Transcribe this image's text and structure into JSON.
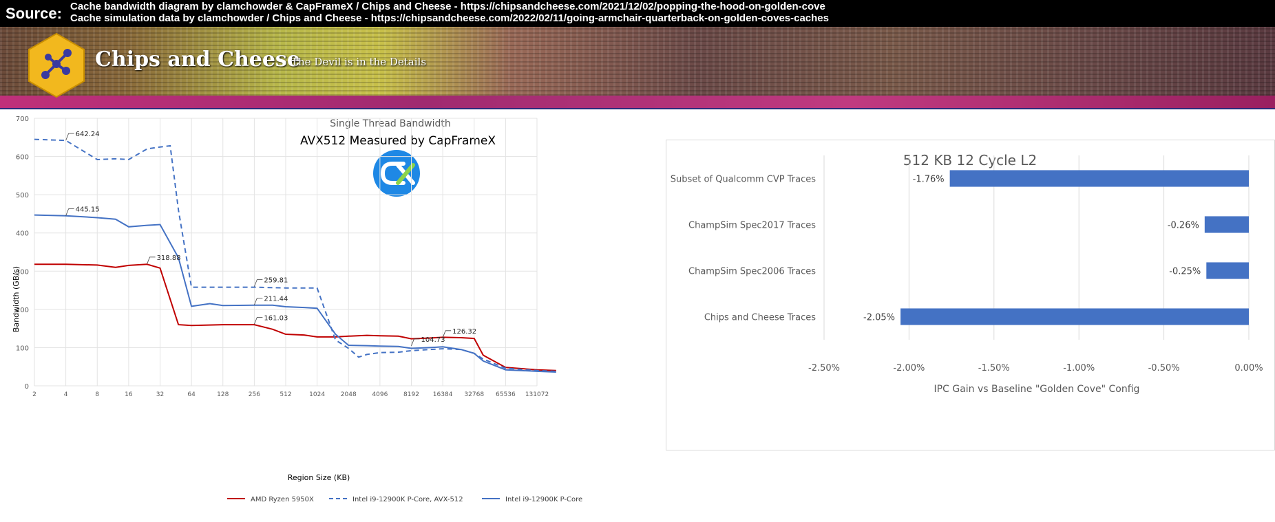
{
  "source": {
    "label": "Source:",
    "line1": "Cache bandwidth diagram by clamchowder & CapFrameX / Chips and Cheese - https://chipsandcheese.com/2021/12/02/popping-the-hood-on-golden-cove",
    "line2": "Cache simulation data by clamchowder / Chips and Cheese - https://chipsandcheese.com/2022/02/11/going-armchair-quarterback-on-golden-coves-caches"
  },
  "banner": {
    "title": "Chips and Cheese",
    "tagline": "The Devil is in the Details",
    "logo_icon": "hexagon-network-logo-icon"
  },
  "colors": {
    "amd": "#c00000",
    "intel_avx": "#4472c4",
    "intel": "#4472c4",
    "bar": "#4472c4",
    "grid": "#e3e3e3",
    "cx_logo": "#1e88e5"
  },
  "chart_data": [
    {
      "type": "line",
      "title": "Single Thread Bandwidth",
      "subtitle": "AVX512 Measured by CapFrameX",
      "xlabel": "Region Size (KB)",
      "ylabel": "Bandwidth (GB/s)",
      "ylim": [
        0,
        700
      ],
      "yticks": [
        "0",
        "100",
        "200",
        "300",
        "400",
        "500",
        "600",
        "700"
      ],
      "x_ticks": [
        "2",
        "4",
        "8",
        "16",
        "32",
        "64",
        "128",
        "256",
        "512",
        "1024",
        "2048",
        "4096",
        "8192",
        "16384",
        "32768",
        "65536",
        "131072"
      ],
      "log2_x": true,
      "grid": true,
      "legend_position": "bottom",
      "series": [
        {
          "name": "AMD Ryzen 5950X",
          "style": "solid",
          "points": [
            [
              2,
              318
            ],
            [
              4,
              318
            ],
            [
              8,
              316
            ],
            [
              12,
              310
            ],
            [
              16,
              315
            ],
            [
              24,
              318
            ],
            [
              32,
              308
            ],
            [
              48,
              160
            ],
            [
              64,
              158
            ],
            [
              128,
              160
            ],
            [
              256,
              160
            ],
            [
              384,
              148
            ],
            [
              512,
              135
            ],
            [
              768,
              133
            ],
            [
              1024,
              128
            ],
            [
              1536,
              128
            ],
            [
              2048,
              130
            ],
            [
              3072,
              132
            ],
            [
              4096,
              131
            ],
            [
              6144,
              130
            ],
            [
              8192,
              123
            ],
            [
              12288,
              125
            ],
            [
              16384,
              127
            ],
            [
              24576,
              126
            ],
            [
              32768,
              124
            ],
            [
              40000,
              80
            ],
            [
              65536,
              48
            ],
            [
              131072,
              42
            ],
            [
              200000,
              40
            ]
          ]
        },
        {
          "name": "Intel i9-12900K P-Core, AVX-512",
          "style": "dashed",
          "points": [
            [
              2,
              645
            ],
            [
              4,
              642
            ],
            [
              8,
              592
            ],
            [
              12,
              594
            ],
            [
              16,
              592
            ],
            [
              24,
              620
            ],
            [
              32,
              625
            ],
            [
              40,
              628
            ],
            [
              48,
              460
            ],
            [
              64,
              258
            ],
            [
              128,
              258
            ],
            [
              256,
              258
            ],
            [
              512,
              256
            ],
            [
              1024,
              256
            ],
            [
              1536,
              120
            ],
            [
              2048,
              98
            ],
            [
              2560,
              75
            ],
            [
              3072,
              82
            ],
            [
              4096,
              87
            ],
            [
              6144,
              88
            ],
            [
              8192,
              92
            ],
            [
              12288,
              95
            ],
            [
              16384,
              97
            ],
            [
              24576,
              95
            ],
            [
              32768,
              85
            ],
            [
              40000,
              70
            ],
            [
              65536,
              46
            ],
            [
              131072,
              40
            ],
            [
              200000,
              38
            ]
          ]
        },
        {
          "name": "Intel i9-12900K P-Core",
          "style": "solid",
          "points": [
            [
              2,
              447
            ],
            [
              4,
              445
            ],
            [
              8,
              440
            ],
            [
              12,
              436
            ],
            [
              16,
              416
            ],
            [
              24,
              420
            ],
            [
              32,
              422
            ],
            [
              48,
              335
            ],
            [
              64,
              208
            ],
            [
              96,
              215
            ],
            [
              128,
              210
            ],
            [
              256,
              211
            ],
            [
              384,
              211
            ],
            [
              512,
              207
            ],
            [
              768,
              205
            ],
            [
              1024,
              203
            ],
            [
              1536,
              135
            ],
            [
              2048,
              106
            ],
            [
              3072,
              105
            ],
            [
              4096,
              104
            ],
            [
              6144,
              103
            ],
            [
              8192,
              98
            ],
            [
              12288,
              100
            ],
            [
              16384,
              102
            ],
            [
              24576,
              95
            ],
            [
              32768,
              85
            ],
            [
              40000,
              65
            ],
            [
              65536,
              42
            ],
            [
              131072,
              38
            ],
            [
              200000,
              36
            ]
          ]
        }
      ],
      "annotations": [
        {
          "label": "642.24",
          "x": 4,
          "y": 642.24
        },
        {
          "label": "445.15",
          "x": 4,
          "y": 445.15
        },
        {
          "label": "318.88",
          "x": 24,
          "y": 318.88
        },
        {
          "label": "259.81",
          "x": 256,
          "y": 259.81
        },
        {
          "label": "211.44",
          "x": 256,
          "y": 211.44
        },
        {
          "label": "161.03",
          "x": 256,
          "y": 161.03
        },
        {
          "label": "126.32",
          "x": 16384,
          "y": 126.32
        },
        {
          "label": "104.73",
          "x": 8192,
          "y": 104.73
        }
      ]
    },
    {
      "type": "bar",
      "orientation": "horizontal",
      "title": "512 KB 12 Cycle L2",
      "xlabel": "IPC Gain vs Baseline \"Golden Cove\" Config",
      "xlim": [
        -2.5,
        0
      ],
      "xticks": [
        "-2.50%",
        "-2.00%",
        "-1.50%",
        "-1.00%",
        "-0.50%",
        "0.00%"
      ],
      "categories": [
        "Subset of Qualcomm CVP Traces",
        "ChampSim Spec2017 Traces",
        "ChampSim Spec2006 Traces",
        "Chips and Cheese Traces"
      ],
      "values": [
        -1.76,
        -0.26,
        -0.25,
        -2.05
      ],
      "labels": [
        "-1.76%",
        "-0.26%",
        "-0.25%",
        "-2.05%"
      ],
      "grid": true
    }
  ]
}
